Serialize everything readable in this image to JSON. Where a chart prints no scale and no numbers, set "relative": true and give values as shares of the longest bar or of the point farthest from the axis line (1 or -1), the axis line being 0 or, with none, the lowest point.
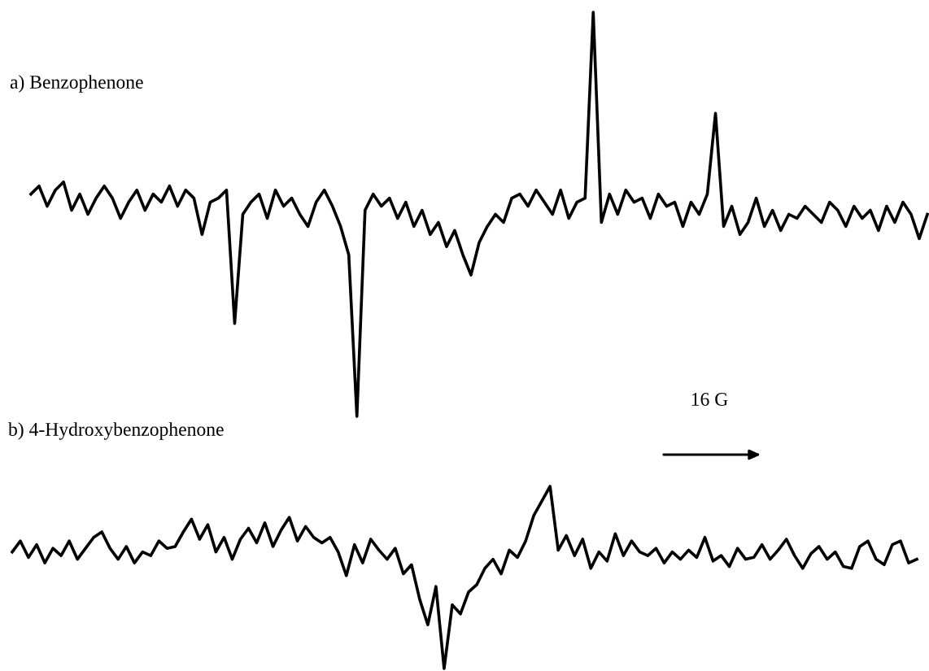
{
  "chart_data": [
    {
      "type": "line",
      "title": "a) Benzophenone",
      "relative": true,
      "tick_labels": false,
      "categories": [
        null,
        null,
        null,
        null,
        null,
        null,
        null,
        null,
        null,
        null,
        null,
        null,
        null,
        null,
        null,
        null,
        null,
        null,
        null,
        null,
        null,
        null,
        null,
        null,
        null,
        null,
        null,
        null,
        null,
        null,
        null,
        null,
        null,
        null,
        null,
        null,
        null,
        null,
        null,
        null,
        null,
        null,
        null,
        null,
        null,
        null,
        null,
        null,
        null,
        null,
        null,
        null,
        null,
        null,
        null,
        null,
        null,
        null,
        null,
        null,
        null,
        null,
        null,
        null,
        null,
        null,
        null,
        null,
        null,
        null,
        null,
        null,
        null,
        null,
        null,
        null,
        null,
        null,
        null,
        null,
        null,
        null,
        null,
        null,
        null,
        null,
        null,
        null,
        null,
        null,
        null,
        null,
        null,
        null,
        null,
        null,
        null,
        null,
        null,
        null,
        null,
        null,
        null,
        null,
        null,
        null,
        null,
        null,
        null,
        null,
        null
      ],
      "series": [
        {
          "color": "#000000",
          "values": [
            0.55,
            0.57,
            0.52,
            0.56,
            0.58,
            0.51,
            0.55,
            0.5,
            0.54,
            0.57,
            0.54,
            0.49,
            0.53,
            0.56,
            0.51,
            0.55,
            0.53,
            0.57,
            0.52,
            0.56,
            0.54,
            0.45,
            0.53,
            0.54,
            0.56,
            0.23,
            0.5,
            0.53,
            0.55,
            0.49,
            0.56,
            0.52,
            0.54,
            0.5,
            0.47,
            0.53,
            0.56,
            0.52,
            0.47,
            0.4,
            0.0,
            0.51,
            0.55,
            0.52,
            0.54,
            0.49,
            0.53,
            0.47,
            0.51,
            0.45,
            0.48,
            0.42,
            0.46,
            0.4,
            0.35,
            0.43,
            0.47,
            0.5,
            0.48,
            0.54,
            0.55,
            0.52,
            0.56,
            0.53,
            0.5,
            0.56,
            0.49,
            0.53,
            0.54,
            1.0,
            0.48,
            0.55,
            0.5,
            0.56,
            0.53,
            0.54,
            0.49,
            0.55,
            0.52,
            0.53,
            0.47,
            0.53,
            0.5,
            0.55,
            0.75,
            0.47,
            0.52,
            0.45,
            0.48,
            0.54,
            0.47,
            0.51,
            0.46,
            0.5,
            0.49,
            0.52,
            0.5,
            0.48,
            0.53,
            0.51,
            0.47,
            0.52,
            0.49,
            0.51,
            0.46,
            0.52,
            0.48,
            0.53,
            0.5,
            0.44,
            0.5
          ]
        }
      ]
    },
    {
      "type": "line",
      "title": "b) 4-Hydroxybenzophenone",
      "relative": true,
      "tick_labels": false,
      "annotations": [
        "16 G"
      ],
      "categories": [
        null,
        null,
        null,
        null,
        null,
        null,
        null,
        null,
        null,
        null,
        null,
        null,
        null,
        null,
        null,
        null,
        null,
        null,
        null,
        null,
        null,
        null,
        null,
        null,
        null,
        null,
        null,
        null,
        null,
        null,
        null,
        null,
        null,
        null,
        null,
        null,
        null,
        null,
        null,
        null,
        null,
        null,
        null,
        null,
        null,
        null,
        null,
        null,
        null,
        null,
        null,
        null,
        null,
        null,
        null,
        null,
        null,
        null,
        null,
        null,
        null,
        null,
        null,
        null,
        null,
        null,
        null,
        null,
        null,
        null,
        null,
        null,
        null,
        null,
        null,
        null,
        null,
        null,
        null,
        null,
        null,
        null,
        null,
        null,
        null,
        null,
        null,
        null,
        null,
        null,
        null,
        null,
        null,
        null,
        null,
        null,
        null,
        null,
        null,
        null,
        null,
        null,
        null,
        null,
        null,
        null,
        null,
        null,
        null,
        null,
        null,
        null
      ],
      "series": [
        {
          "color": "#000000",
          "values": [
            0.64,
            0.7,
            0.61,
            0.68,
            0.58,
            0.66,
            0.62,
            0.7,
            0.6,
            0.66,
            0.72,
            0.75,
            0.66,
            0.6,
            0.67,
            0.58,
            0.64,
            0.62,
            0.7,
            0.66,
            0.67,
            0.75,
            0.82,
            0.71,
            0.79,
            0.64,
            0.72,
            0.6,
            0.71,
            0.77,
            0.69,
            0.8,
            0.67,
            0.76,
            0.83,
            0.7,
            0.78,
            0.72,
            0.69,
            0.72,
            0.64,
            0.51,
            0.68,
            0.58,
            0.71,
            0.65,
            0.6,
            0.66,
            0.52,
            0.57,
            0.38,
            0.24,
            0.45,
            0.0,
            0.35,
            0.3,
            0.42,
            0.46,
            0.55,
            0.6,
            0.52,
            0.65,
            0.61,
            0.7,
            0.84,
            0.92,
            1.0,
            0.65,
            0.73,
            0.62,
            0.71,
            0.55,
            0.64,
            0.59,
            0.74,
            0.62,
            0.7,
            0.64,
            0.62,
            0.66,
            0.58,
            0.64,
            0.6,
            0.65,
            0.61,
            0.72,
            0.59,
            0.62,
            0.56,
            0.66,
            0.6,
            0.61,
            0.68,
            0.6,
            0.65,
            0.71,
            0.62,
            0.55,
            0.63,
            0.67,
            0.6,
            0.64,
            0.56,
            0.55,
            0.67,
            0.7,
            0.6,
            0.57,
            0.68,
            0.7,
            0.58,
            0.6
          ]
        }
      ]
    }
  ]
}
